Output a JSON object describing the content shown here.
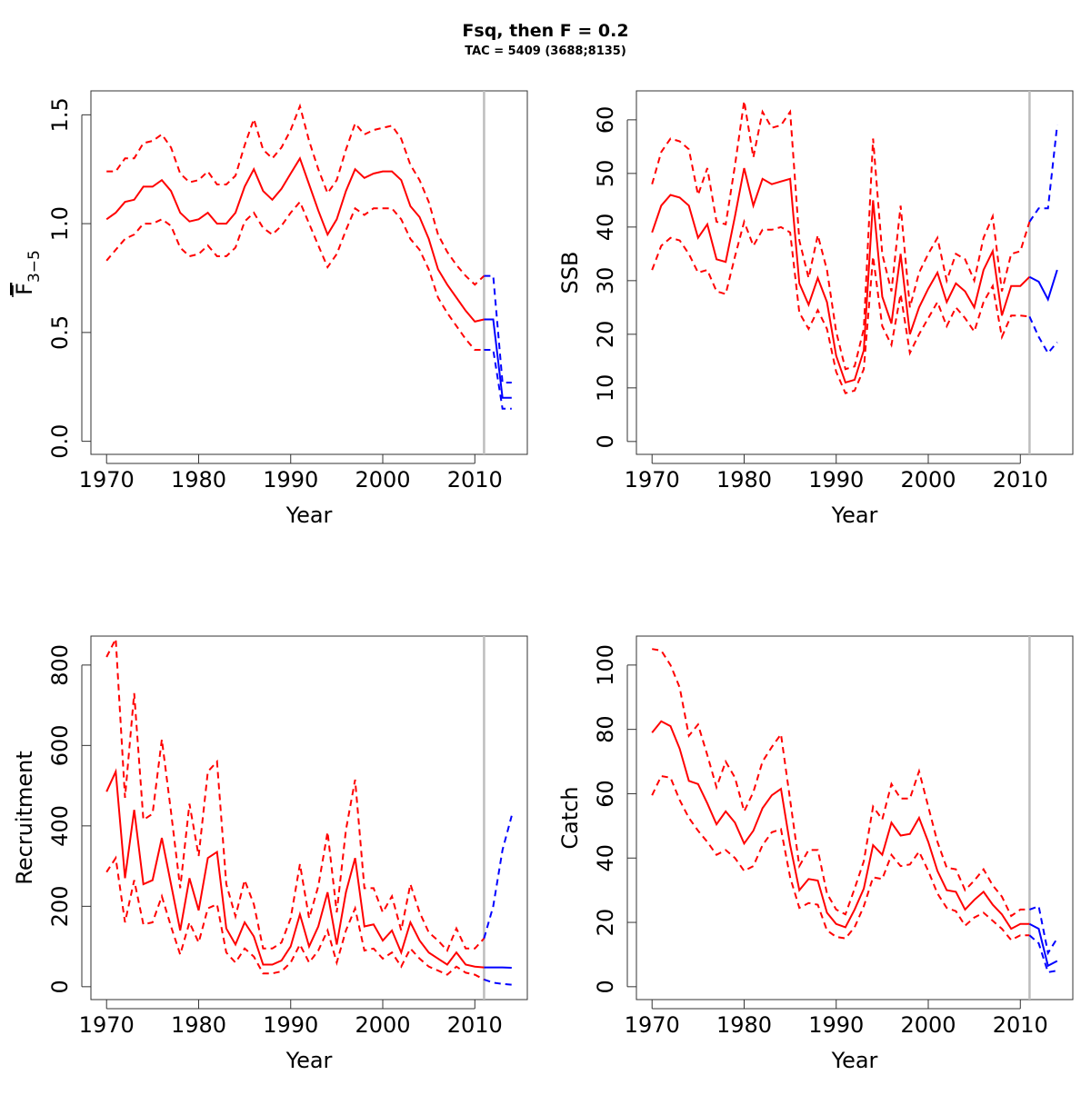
{
  "title": "Fsq, then F = 0.2",
  "subtitle": "TAC = 5409 (3688;8135)",
  "colors": {
    "historic": "#ff0000",
    "projection": "#0000ff",
    "vline": "#bebebe"
  },
  "chart_data": [
    {
      "id": "fbar",
      "type": "line",
      "xlabel": "Year",
      "ylabel_main": "F",
      "ylabel_sub": "3−5",
      "xlim": [
        1970,
        2014
      ],
      "ylim": [
        0,
        1.5
      ],
      "xticks": [
        "1970",
        "1980",
        "1990",
        "2000",
        "2010"
      ],
      "yticks": [
        "0.0",
        "0.5",
        "1.0",
        "1.5"
      ],
      "vline": 2011,
      "historic": {
        "x": [
          1970,
          1971,
          1972,
          1973,
          1974,
          1975,
          1976,
          1977,
          1978,
          1979,
          1980,
          1981,
          1982,
          1983,
          1984,
          1985,
          1986,
          1987,
          1988,
          1989,
          1990,
          1991,
          1992,
          1993,
          1994,
          1995,
          1996,
          1997,
          1998,
          1999,
          2000,
          2001,
          2002,
          2003,
          2004,
          2005,
          2006,
          2007,
          2008,
          2009,
          2010,
          2011
        ],
        "y": [
          1.02,
          1.05,
          1.1,
          1.11,
          1.17,
          1.17,
          1.2,
          1.15,
          1.05,
          1.01,
          1.02,
          1.05,
          1.0,
          1.0,
          1.05,
          1.17,
          1.25,
          1.15,
          1.11,
          1.16,
          1.23,
          1.3,
          1.18,
          1.06,
          0.95,
          1.02,
          1.15,
          1.25,
          1.21,
          1.23,
          1.24,
          1.24,
          1.2,
          1.08,
          1.03,
          0.93,
          0.79,
          0.72,
          0.66,
          0.6,
          0.55,
          0.56
        ],
        "upper": [
          1.24,
          1.24,
          1.3,
          1.3,
          1.37,
          1.38,
          1.41,
          1.35,
          1.23,
          1.19,
          1.2,
          1.24,
          1.18,
          1.18,
          1.22,
          1.36,
          1.48,
          1.34,
          1.3,
          1.35,
          1.43,
          1.54,
          1.38,
          1.25,
          1.14,
          1.2,
          1.34,
          1.46,
          1.41,
          1.43,
          1.44,
          1.45,
          1.39,
          1.27,
          1.2,
          1.1,
          0.95,
          0.87,
          0.81,
          0.76,
          0.72,
          0.76
        ],
        "lower": [
          0.83,
          0.88,
          0.93,
          0.95,
          1.0,
          1.0,
          1.02,
          0.99,
          0.89,
          0.85,
          0.86,
          0.9,
          0.85,
          0.85,
          0.89,
          1.01,
          1.05,
          0.98,
          0.95,
          0.99,
          1.05,
          1.1,
          1.0,
          0.9,
          0.8,
          0.86,
          0.97,
          1.07,
          1.04,
          1.07,
          1.07,
          1.07,
          1.02,
          0.93,
          0.88,
          0.79,
          0.66,
          0.59,
          0.53,
          0.47,
          0.42,
          0.42
        ]
      },
      "projection": {
        "x": [
          2011,
          2012,
          2013,
          2014
        ],
        "y": [
          0.56,
          0.56,
          0.2,
          0.2
        ],
        "upper": [
          0.76,
          0.76,
          0.27,
          0.27
        ],
        "lower": [
          0.42,
          0.42,
          0.15,
          0.15
        ]
      }
    },
    {
      "id": "ssb",
      "type": "line",
      "xlabel": "Year",
      "ylabel": "SSB",
      "xlim": [
        1970,
        2014
      ],
      "ylim": [
        0,
        60
      ],
      "xticks": [
        "1970",
        "1980",
        "1990",
        "2000",
        "2010"
      ],
      "yticks": [
        "0",
        "10",
        "20",
        "30",
        "40",
        "50",
        "60"
      ],
      "vline": 2011,
      "historic": {
        "x": [
          1970,
          1971,
          1972,
          1973,
          1974,
          1975,
          1976,
          1977,
          1978,
          1979,
          1980,
          1981,
          1982,
          1983,
          1984,
          1985,
          1986,
          1987,
          1988,
          1989,
          1990,
          1991,
          1992,
          1993,
          1994,
          1995,
          1996,
          1997,
          1998,
          1999,
          2000,
          2001,
          2002,
          2003,
          2004,
          2005,
          2006,
          2007,
          2008,
          2009,
          2010,
          2011
        ],
        "y": [
          39,
          44,
          46,
          45.5,
          44,
          38,
          40.5,
          34,
          33.5,
          42,
          51,
          44,
          49,
          48,
          48.5,
          49,
          29.5,
          25.5,
          30.5,
          26,
          16,
          11,
          11.5,
          17,
          45,
          27,
          22,
          35,
          20,
          25,
          28.5,
          31.5,
          26,
          29.5,
          28,
          25,
          32,
          35.5,
          23.5,
          29,
          29,
          30.7
        ],
        "upper": [
          48,
          54,
          56.5,
          56,
          54.5,
          46,
          51,
          41,
          40.5,
          51.5,
          63.5,
          53,
          61.5,
          58.5,
          59,
          61.5,
          37.5,
          30.5,
          38.5,
          32,
          20.5,
          13.5,
          14,
          21,
          56.5,
          35,
          28,
          44,
          25,
          31.5,
          35,
          38,
          30,
          35,
          34,
          30,
          38,
          42,
          28,
          35,
          35.5,
          41
        ],
        "lower": [
          32,
          36.5,
          38,
          37.5,
          35,
          31.5,
          32,
          28,
          27.5,
          34.5,
          41,
          36.5,
          39.5,
          39.5,
          40,
          39,
          24,
          21,
          24.5,
          21,
          13,
          9,
          9.5,
          13.5,
          34.5,
          21.5,
          18,
          27.5,
          16.5,
          20,
          23,
          26,
          21.5,
          25,
          23,
          20.5,
          26,
          29,
          19.5,
          23.5,
          23.5,
          23.3
        ]
      },
      "projection": {
        "x": [
          2011,
          2012,
          2013,
          2014
        ],
        "y": [
          30.7,
          29.8,
          26.5,
          32
        ],
        "upper": [
          41,
          43.5,
          43.5,
          59
        ],
        "lower": [
          23.3,
          19.5,
          16.5,
          18.5
        ]
      }
    },
    {
      "id": "recruitment",
      "type": "line",
      "xlabel": "Year",
      "ylabel": "Recruitment",
      "xlim": [
        1970,
        2014
      ],
      "ylim": [
        0,
        800
      ],
      "xticks": [
        "1970",
        "1980",
        "1990",
        "2000",
        "2010"
      ],
      "yticks": [
        "0",
        "200",
        "400",
        "600",
        "800"
      ],
      "vline": 2011,
      "historic": {
        "x": [
          1970,
          1971,
          1972,
          1973,
          1974,
          1975,
          1976,
          1977,
          1978,
          1979,
          1980,
          1981,
          1982,
          1983,
          1984,
          1985,
          1986,
          1987,
          1988,
          1989,
          1990,
          1991,
          1992,
          1993,
          1994,
          1995,
          1996,
          1997,
          1998,
          1999,
          2000,
          2001,
          2002,
          2003,
          2004,
          2005,
          2006,
          2007,
          2008,
          2009,
          2010,
          2011
        ],
        "y": [
          485,
          535,
          270,
          440,
          255,
          265,
          370,
          255,
          140,
          270,
          190,
          320,
          335,
          145,
          105,
          160,
          125,
          55,
          55,
          65,
          100,
          180,
          100,
          150,
          235,
          105,
          235,
          320,
          150,
          155,
          115,
          140,
          85,
          160,
          115,
          85,
          70,
          55,
          85,
          55,
          50,
          48
        ],
        "upper": [
          820,
          865,
          470,
          730,
          415,
          430,
          615,
          435,
          245,
          455,
          325,
          535,
          560,
          255,
          175,
          265,
          205,
          95,
          95,
          110,
          170,
          305,
          170,
          250,
          385,
          185,
          390,
          515,
          245,
          245,
          185,
          225,
          140,
          255,
          185,
          135,
          115,
          90,
          145,
          95,
          95,
          120
        ],
        "lower": [
          285,
          320,
          160,
          265,
          155,
          160,
          225,
          150,
          80,
          160,
          110,
          195,
          205,
          85,
          60,
          95,
          75,
          33,
          33,
          38,
          60,
          105,
          60,
          90,
          140,
          60,
          140,
          195,
          90,
          95,
          70,
          85,
          50,
          95,
          70,
          50,
          40,
          30,
          50,
          35,
          30,
          18
        ]
      },
      "projection": {
        "x": [
          2011,
          2012,
          2013,
          2014
        ],
        "y": [
          48,
          48,
          48,
          47
        ],
        "upper": [
          120,
          200,
          340,
          425
        ],
        "lower": [
          18,
          10,
          7,
          5
        ]
      }
    },
    {
      "id": "catch",
      "type": "line",
      "xlabel": "Year",
      "ylabel": "Catch",
      "xlim": [
        1970,
        2014
      ],
      "ylim": [
        0,
        100
      ],
      "xticks": [
        "1970",
        "1980",
        "1990",
        "2000",
        "2010"
      ],
      "yticks": [
        "0",
        "20",
        "40",
        "60",
        "80",
        "100"
      ],
      "vline": 2011,
      "historic": {
        "x": [
          1970,
          1971,
          1972,
          1973,
          1974,
          1975,
          1976,
          1977,
          1978,
          1979,
          1980,
          1981,
          1982,
          1983,
          1984,
          1985,
          1986,
          1987,
          1988,
          1989,
          1990,
          1991,
          1992,
          1993,
          1994,
          1995,
          1996,
          1997,
          1998,
          1999,
          2000,
          2001,
          2002,
          2003,
          2004,
          2005,
          2006,
          2007,
          2008,
          2009,
          2010,
          2011
        ],
        "y": [
          79,
          82.5,
          81,
          74,
          64,
          63,
          57,
          50.5,
          54.5,
          51,
          44.5,
          48.5,
          55.5,
          59.5,
          61.5,
          44,
          30,
          33.5,
          33,
          23,
          19.5,
          18.5,
          24,
          30.5,
          44,
          41,
          51,
          47,
          47.5,
          52.5,
          45,
          36,
          30,
          29.5,
          24,
          27,
          29.5,
          25.5,
          22.5,
          18,
          19.5,
          19.5
        ],
        "upper": [
          105,
          104.5,
          100,
          93,
          78,
          81.5,
          72,
          62,
          70,
          65,
          54.5,
          60.5,
          70,
          74.5,
          78.5,
          58,
          37.5,
          42.5,
          42.5,
          29,
          24,
          22.5,
          30.5,
          39,
          56,
          52,
          63,
          58.5,
          58.5,
          67,
          56,
          45,
          37,
          36.5,
          30,
          33,
          36.5,
          31.5,
          28,
          22,
          24,
          24
        ],
        "lower": [
          59.5,
          65.5,
          65,
          58,
          52.5,
          48.5,
          45,
          41,
          42.5,
          40,
          36,
          37.5,
          44,
          48,
          49,
          34,
          24.5,
          26,
          25.5,
          17.5,
          15.5,
          15,
          18.5,
          25,
          34,
          33.5,
          41,
          37.5,
          38,
          42,
          36,
          29,
          24.5,
          23.5,
          19,
          21.5,
          23,
          20.5,
          18,
          14.5,
          16,
          16
        ]
      },
      "projection": {
        "x": [
          2011,
          2012,
          2013,
          2014
        ],
        "y": [
          19.5,
          18,
          6.5,
          8
        ],
        "upper": [
          24,
          25,
          10.5,
          15
        ],
        "lower": [
          16,
          13.5,
          4.5,
          5
        ]
      }
    }
  ]
}
